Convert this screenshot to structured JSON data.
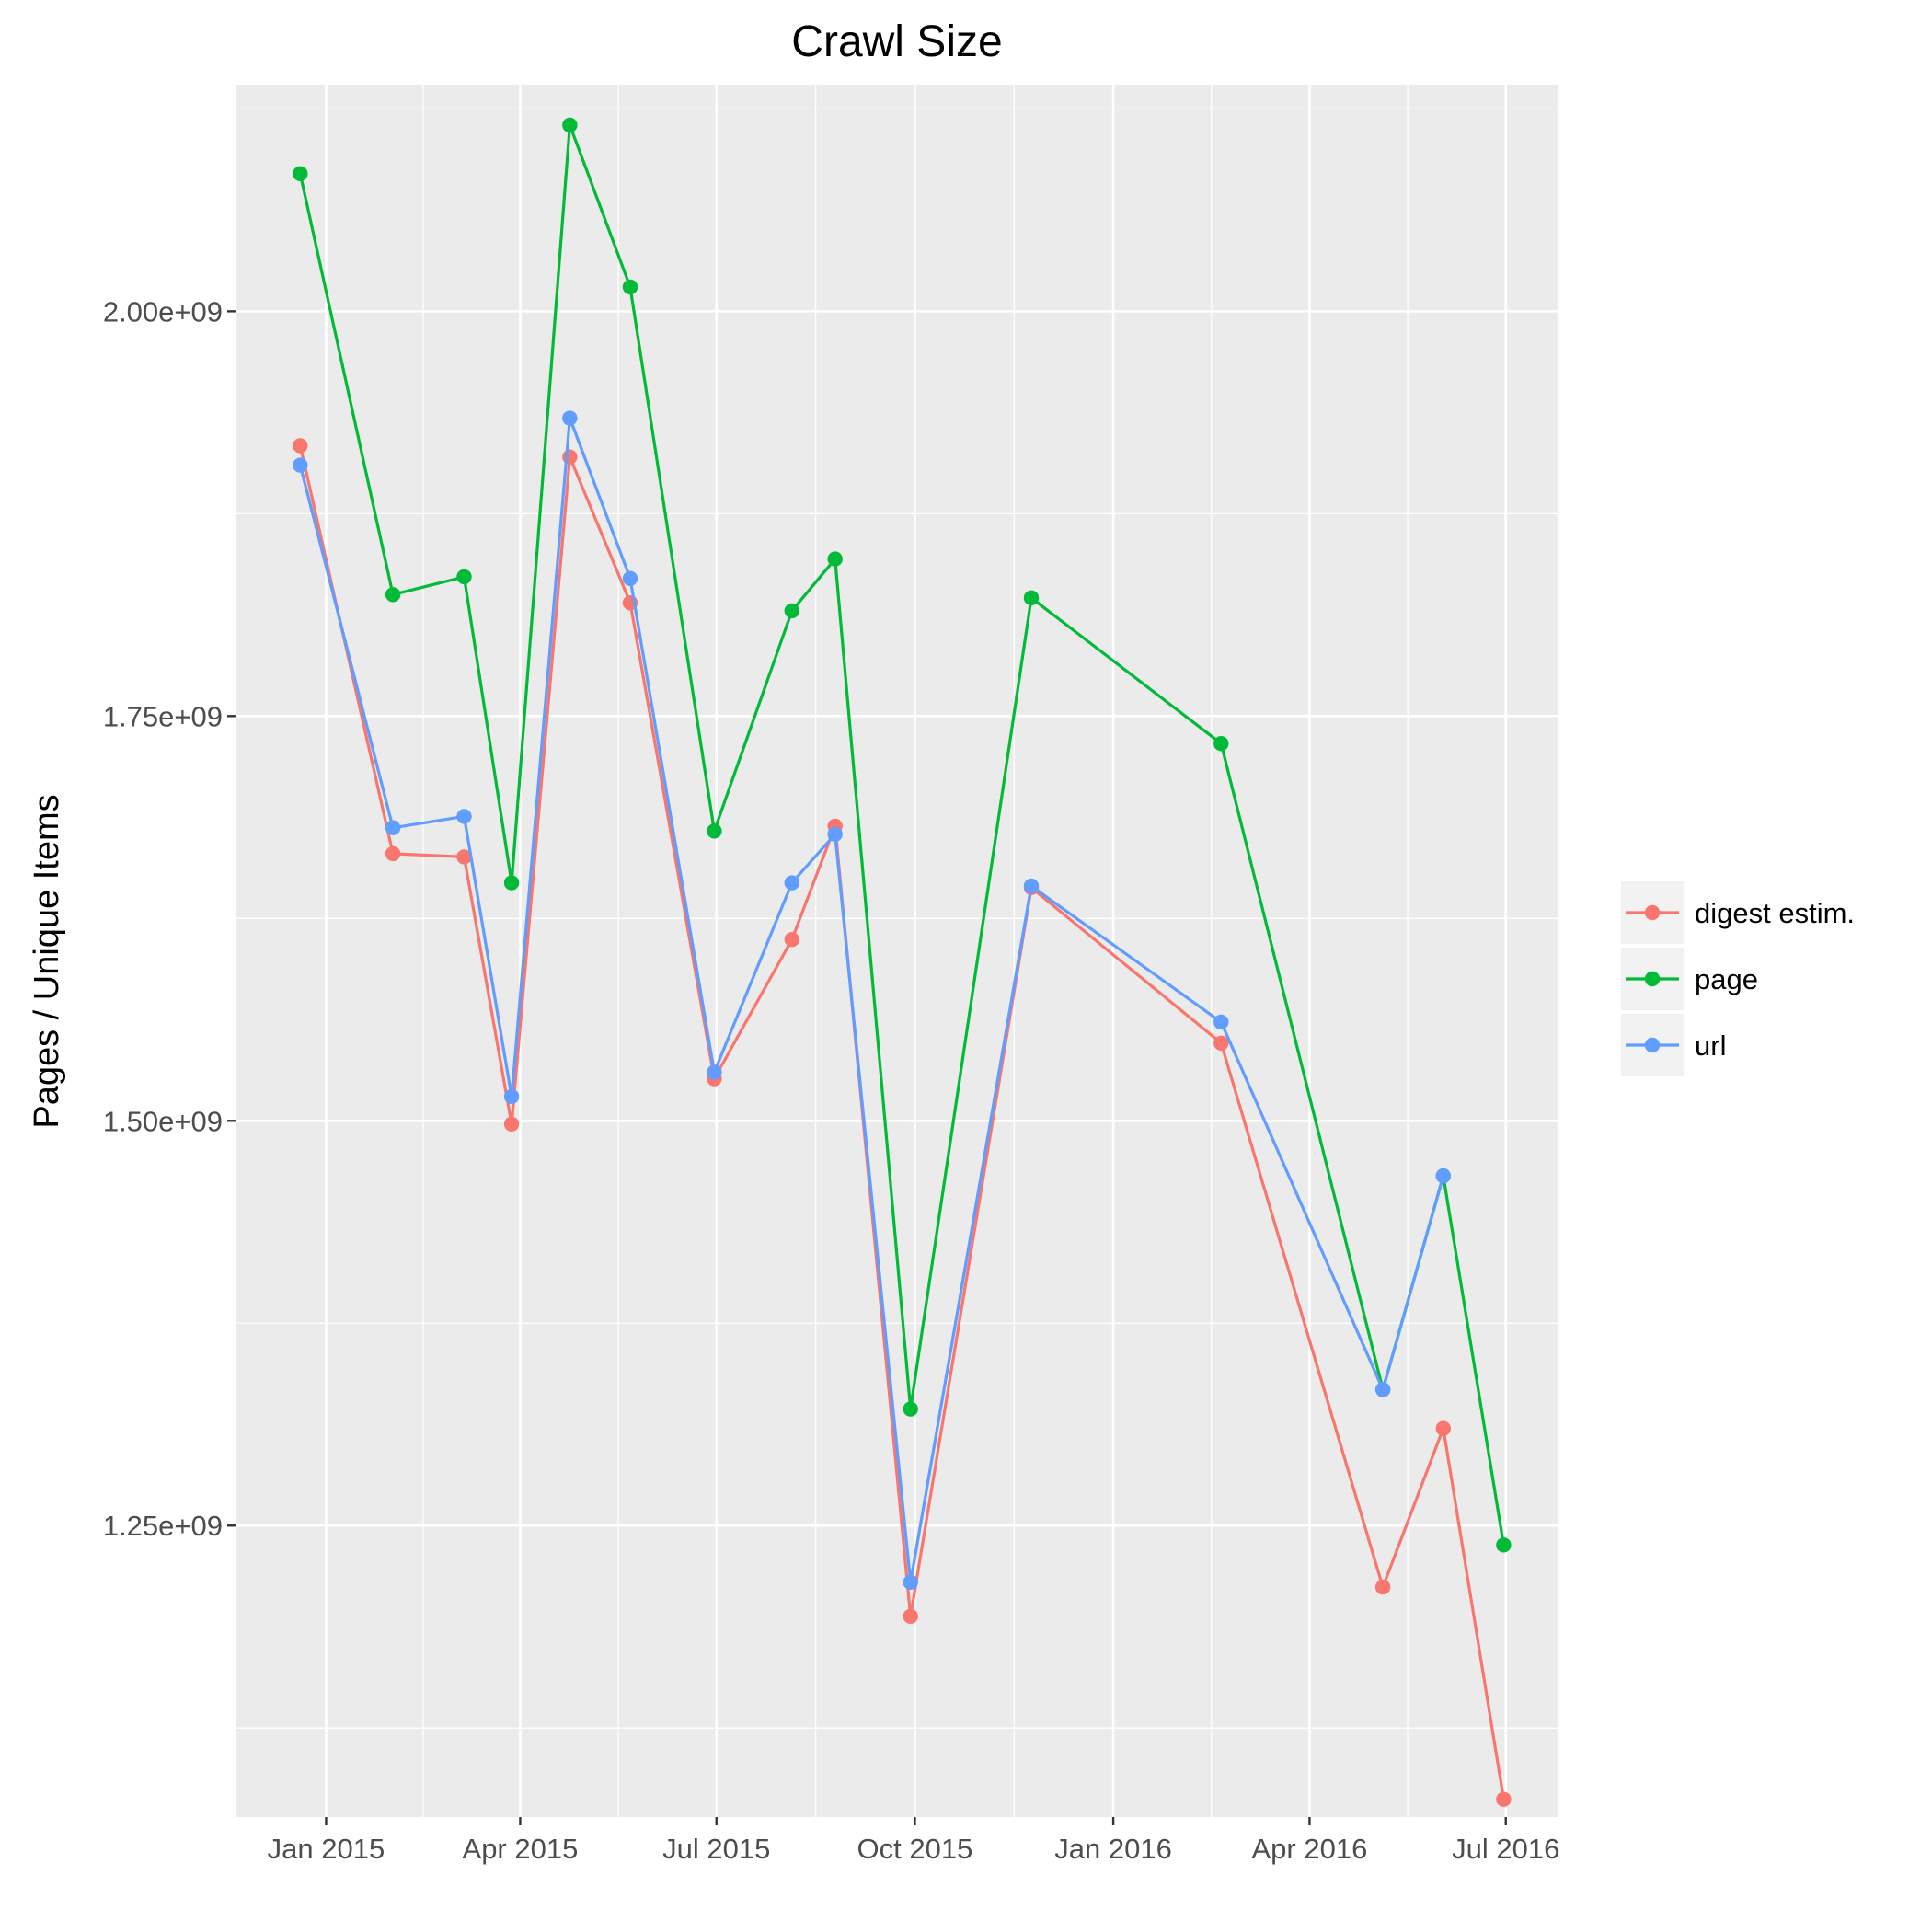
{
  "chart_data": {
    "type": "line",
    "title": "Crawl Size",
    "xlabel": "",
    "ylabel": "Pages / Unique Items",
    "x_axis": {
      "type": "date",
      "range": [
        "2014-11-20",
        "2016-07-25"
      ],
      "ticks": [
        {
          "date": "2015-01-01",
          "label": "Jan 2015"
        },
        {
          "date": "2015-04-01",
          "label": "Apr 2015"
        },
        {
          "date": "2015-07-01",
          "label": "Jul 2015"
        },
        {
          "date": "2015-10-01",
          "label": "Oct 2015"
        },
        {
          "date": "2016-01-01",
          "label": "Jan 2016"
        },
        {
          "date": "2016-04-01",
          "label": "Apr 2016"
        },
        {
          "date": "2016-07-01",
          "label": "Jul 2016"
        }
      ]
    },
    "y_axis": {
      "range": [
        1070000000,
        2140000000
      ],
      "ticks": [
        {
          "value": 1250000000,
          "label": "1.25e+09"
        },
        {
          "value": 1500000000,
          "label": "1.50e+09"
        },
        {
          "value": 1750000000,
          "label": "1.75e+09"
        },
        {
          "value": 2000000000,
          "label": "2.00e+09"
        }
      ]
    },
    "grid": true,
    "legend_position": "right",
    "x": [
      "2014-12-20",
      "2015-02-01",
      "2015-03-06",
      "2015-03-28",
      "2015-04-24",
      "2015-05-22",
      "2015-06-30",
      "2015-08-05",
      "2015-08-25",
      "2015-09-29",
      "2015-11-24",
      "2016-02-20",
      "2016-05-05",
      "2016-06-02",
      "2016-06-30"
    ],
    "series": [
      {
        "name": "digest estim.",
        "color": "#F8766D",
        "values": [
          1917000000,
          1665000000,
          1663000000,
          1498000000,
          1910000000,
          1820000000,
          1526000000,
          1612000000,
          1682000000,
          1194000000,
          1644000000,
          1548000000,
          1212000000,
          1310000000,
          1081000000
        ]
      },
      {
        "name": "page",
        "color": "#00BA38",
        "values": [
          2085000000,
          1825000000,
          1836000000,
          1647000000,
          2115000000,
          2015000000,
          1679000000,
          1815000000,
          1847000000,
          1322000000,
          1823000000,
          1733000000,
          1334000000,
          1466000000,
          1238000000
        ]
      },
      {
        "name": "url",
        "color": "#619CFF",
        "values": [
          1905000000,
          1681000000,
          1688000000,
          1515000000,
          1934000000,
          1835000000,
          1530000000,
          1647000000,
          1677000000,
          1215000000,
          1645000000,
          1561000000,
          1334000000,
          1466000000,
          null
        ]
      }
    ]
  }
}
